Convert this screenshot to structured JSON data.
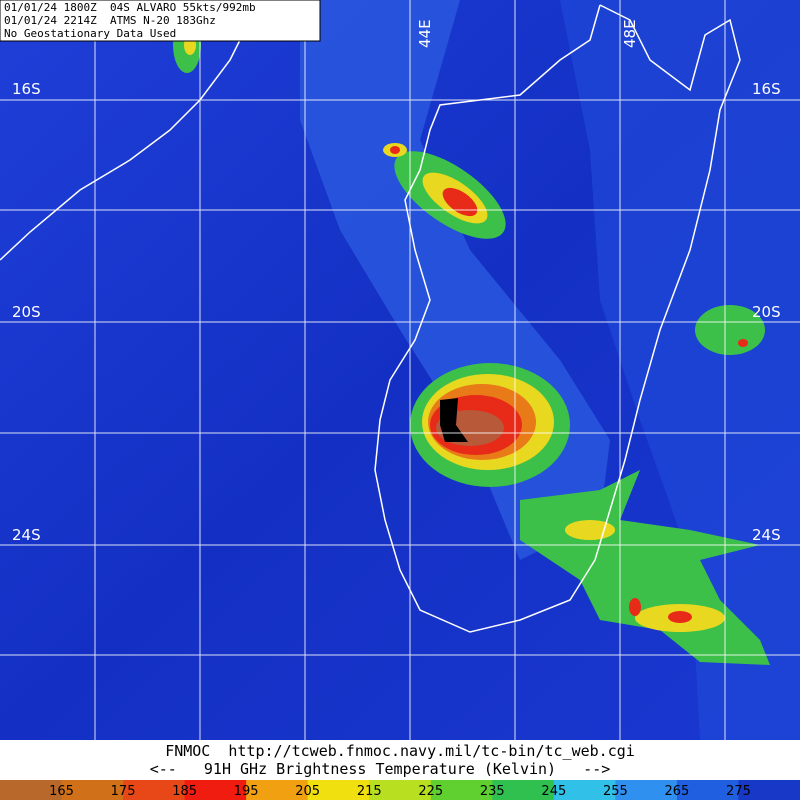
{
  "header": {
    "lines": [
      "01/01/24 1800Z  04S ALVARO 55kts/992mb",
      "01/01/24 2214Z  ATMS N-20 183Ghz",
      "No Geostationary Data Used"
    ]
  },
  "map": {
    "lat_labels": [
      "16S",
      "20S",
      "24S"
    ],
    "lon_labels": [
      "44E",
      "48E"
    ]
  },
  "footer": {
    "source": "FNMOC  http://tcweb.fnmoc.navy.mil/tc-bin/tc_web.cgi",
    "legend_title": "<--   91H GHz Brightness Temperature (Kelvin)   -->"
  },
  "colorbar": {
    "labels": [
      165,
      175,
      185,
      195,
      205,
      215,
      225,
      235,
      245,
      255,
      265,
      275
    ]
  }
}
